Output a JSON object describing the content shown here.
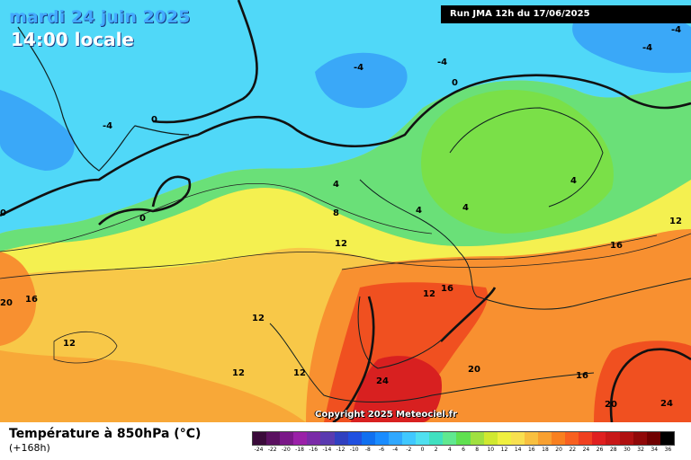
{
  "header": {
    "date": "mardi 24 juin 2025",
    "local_time": "14:00 locale",
    "run": "Run JMA 12h du 17/06/2025"
  },
  "map": {
    "copyright": "Copyright 2025 Meteociel.fr",
    "isotherm_labels": [
      "-4",
      "-4",
      "-4",
      "-4",
      "-4",
      "0",
      "0",
      "0",
      "0",
      "4",
      "4",
      "4",
      "4",
      "8",
      "12",
      "12",
      "12",
      "12",
      "12",
      "12",
      "12",
      "16",
      "16",
      "16",
      "16",
      "20",
      "20",
      "20",
      "24",
      "24"
    ]
  },
  "footer": {
    "title": "Température à 850hPa (°C)",
    "lead": "(+168h)"
  },
  "legend": {
    "ticks": [
      "-24",
      "-22",
      "-20",
      "-18",
      "-16",
      "-14",
      "-12",
      "-10",
      "-8",
      "-6",
      "-4",
      "-2",
      "0",
      "2",
      "4",
      "6",
      "8",
      "10",
      "12",
      "14",
      "16",
      "18",
      "20",
      "22",
      "24",
      "26",
      "28",
      "30",
      "32",
      "34",
      "36"
    ],
    "colors": [
      "#3a0a3a",
      "#5a1060",
      "#7a1888",
      "#9a20a8",
      "#7a2aa8",
      "#5a3ab0",
      "#3040c0",
      "#2050e0",
      "#1070f0",
      "#1a8cff",
      "#30a8ff",
      "#40c8ff",
      "#50e0f0",
      "#40e0c0",
      "#60e890",
      "#60e050",
      "#a0e040",
      "#d0e830",
      "#f0f040",
      "#f8e050",
      "#f8c040",
      "#f8a030",
      "#f88020",
      "#f86020",
      "#f04020",
      "#e02020",
      "#c81818",
      "#b01010",
      "#900808",
      "#700000",
      "#000000"
    ]
  }
}
